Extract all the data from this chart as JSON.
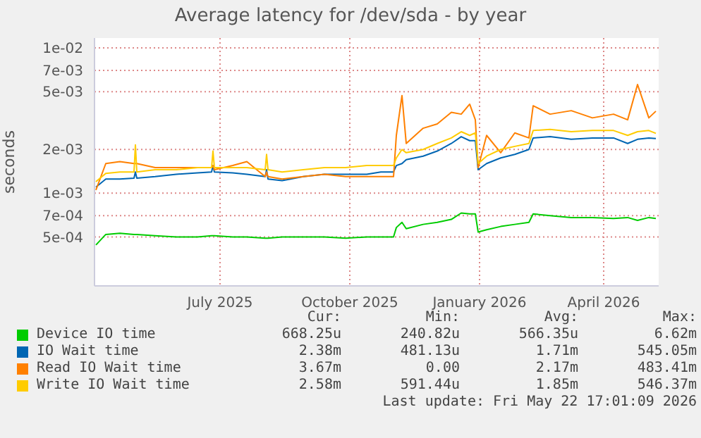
{
  "chart_data": {
    "type": "line",
    "title": "Average latency for /dev/sda - by year",
    "ylabel": "seconds",
    "log": "y",
    "grid": true,
    "legend": "bottom",
    "marker": "none",
    "line_style": "solid",
    "x": [
      "2025-04-18",
      "2025-04-25",
      "2025-05-05",
      "2025-05-15",
      "2025-05-16",
      "2025-05-17",
      "2025-05-30",
      "2025-06-14",
      "2025-06-29",
      "2025-07-09",
      "2025-07-10",
      "2025-07-11",
      "2025-07-24",
      "2025-08-03",
      "2025-08-16",
      "2025-08-17",
      "2025-08-18",
      "2025-08-28",
      "2025-09-12",
      "2025-09-27",
      "2025-10-12",
      "2025-10-27",
      "2025-11-06",
      "2025-11-15",
      "2025-11-17",
      "2025-11-21",
      "2025-11-24",
      "2025-12-06",
      "2025-12-16",
      "2025-12-26",
      "2026-01-02",
      "2026-01-08",
      "2026-01-12",
      "2026-01-14",
      "2026-01-20",
      "2026-01-30",
      "2026-02-09",
      "2026-02-19",
      "2026-02-22",
      "2026-03-06",
      "2026-03-21",
      "2026-04-05",
      "2026-04-20",
      "2026-04-30",
      "2026-05-07",
      "2026-05-15",
      "2026-05-20"
    ],
    "xlim": [
      "2025-04-17",
      "2026-05-22"
    ],
    "xticks": [
      {
        "value": "2025-07-15",
        "label": "July 2025"
      },
      {
        "value": "2025-10-15",
        "label": "October 2025"
      },
      {
        "value": "2026-01-15",
        "label": "January 2026"
      },
      {
        "value": "2026-04-13",
        "label": "April 2026"
      }
    ],
    "ylim": [
      0.00023,
      0.0117
    ],
    "yticks": [
      {
        "value": 0.0005,
        "label": "5e-04"
      },
      {
        "value": 0.0007,
        "label": "7e-04"
      },
      {
        "value": 0.001,
        "label": "1e-03"
      },
      {
        "value": 0.002,
        "label": "2e-03"
      },
      {
        "value": 0.005,
        "label": "5e-03"
      },
      {
        "value": 0.007,
        "label": "7e-03"
      },
      {
        "value": 0.01,
        "label": "1e-02"
      }
    ],
    "series": [
      {
        "name": "Device IO time",
        "color": "#00cc00",
        "values": [
          0.00044,
          0.00052,
          0.00053,
          0.00052,
          0.00052,
          0.00052,
          0.00051,
          0.0005,
          0.0005,
          0.00051,
          0.00051,
          0.00051,
          0.0005,
          0.0005,
          0.00049,
          0.00049,
          0.00049,
          0.0005,
          0.0005,
          0.0005,
          0.00049,
          0.0005,
          0.0005,
          0.0005,
          0.00058,
          0.00063,
          0.00057,
          0.00061,
          0.00063,
          0.00066,
          0.00073,
          0.00072,
          0.00072,
          0.00054,
          0.00056,
          0.00059,
          0.00061,
          0.00063,
          0.00072,
          0.0007,
          0.00068,
          0.00068,
          0.00067,
          0.00068,
          0.00065,
          0.00068,
          0.00067
        ]
      },
      {
        "name": "IO Wait time",
        "color": "#0066b3",
        "values": [
          0.0011,
          0.00125,
          0.00125,
          0.00127,
          0.0014,
          0.00127,
          0.0013,
          0.00135,
          0.00138,
          0.0014,
          0.00155,
          0.0014,
          0.00138,
          0.00135,
          0.0013,
          0.00145,
          0.00125,
          0.00122,
          0.0013,
          0.00135,
          0.00135,
          0.00135,
          0.0014,
          0.0014,
          0.00155,
          0.0016,
          0.0017,
          0.0018,
          0.00195,
          0.0022,
          0.00245,
          0.0023,
          0.0023,
          0.00145,
          0.0016,
          0.00175,
          0.00185,
          0.002,
          0.0024,
          0.00245,
          0.00235,
          0.0024,
          0.0024,
          0.0022,
          0.00235,
          0.0024,
          0.00238
        ]
      },
      {
        "name": "Read IO Wait time",
        "color": "#ff8000",
        "values": [
          0.00105,
          0.0016,
          0.00165,
          0.0016,
          0.0016,
          0.0016,
          0.0015,
          0.0015,
          0.0015,
          0.0015,
          0.00155,
          0.00145,
          0.00155,
          0.00165,
          0.0013,
          0.0014,
          0.0013,
          0.00125,
          0.0013,
          0.00135,
          0.0013,
          0.0013,
          0.0013,
          0.0013,
          0.0025,
          0.0047,
          0.0022,
          0.0028,
          0.003,
          0.0036,
          0.0035,
          0.0041,
          0.0032,
          0.0015,
          0.0025,
          0.0019,
          0.0026,
          0.0024,
          0.004,
          0.0035,
          0.0037,
          0.0033,
          0.0035,
          0.0032,
          0.0056,
          0.0033,
          0.00367
        ]
      },
      {
        "name": "Write IO Wait time",
        "color": "#ffcc00",
        "values": [
          0.0012,
          0.00137,
          0.0014,
          0.0014,
          0.00215,
          0.0014,
          0.00145,
          0.00145,
          0.0015,
          0.0015,
          0.00195,
          0.0015,
          0.0015,
          0.0015,
          0.00145,
          0.00185,
          0.00145,
          0.0014,
          0.00145,
          0.0015,
          0.0015,
          0.00155,
          0.00155,
          0.00155,
          0.00175,
          0.002,
          0.0019,
          0.002,
          0.0022,
          0.0024,
          0.00265,
          0.0025,
          0.0026,
          0.0016,
          0.0018,
          0.002,
          0.0021,
          0.0022,
          0.0027,
          0.00275,
          0.00265,
          0.0027,
          0.0027,
          0.0025,
          0.00265,
          0.0027,
          0.00258
        ]
      }
    ],
    "annotations": [
      "Cur:",
      "Min:",
      "Avg:",
      "Max:",
      "668.25u",
      "240.82u",
      "566.35u",
      "6.62m",
      "2.38m",
      "481.13u",
      "1.71m",
      "545.05m",
      "3.67m",
      "0.00",
      "2.17m",
      "483.41m",
      "2.58m",
      "591.44u",
      "1.85m",
      "546.37m",
      "Last update: Fri May 22 17:01:09 2026"
    ]
  }
}
